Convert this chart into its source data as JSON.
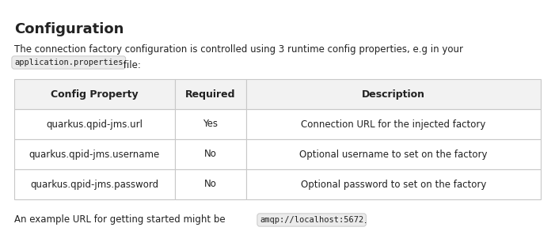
{
  "title": "Configuration",
  "intro_line1": "The connection factory configuration is controlled using 3 runtime config properties, e.g in your",
  "inline_code_1": "application.properties",
  "intro_line2_suffix": " file:",
  "footer_text": "An example URL for getting started might be",
  "footer_code": "amqp://localhost:5672",
  "footer_text_end": " .",
  "table_headers": [
    "Config Property",
    "Required",
    "Description"
  ],
  "table_rows": [
    [
      "quarkus.qpid-jms.url",
      "Yes",
      "Connection URL for the injected factory"
    ],
    [
      "quarkus.qpid-jms.username",
      "No",
      "Optional username to set on the factory"
    ],
    [
      "quarkus.qpid-jms.password",
      "No",
      "Optional password to set on the factory"
    ]
  ],
  "bg_color": "#ffffff",
  "header_bg": "#f2f2f2",
  "row_bg": "#ffffff",
  "border_color": "#c8c8c8",
  "text_color": "#222222",
  "code_bg": "#ebebeb",
  "code_border": "#c8c8c8",
  "title_fontsize": 13,
  "body_fontsize": 8.5,
  "header_fontsize": 9,
  "code_fontsize": 7.5,
  "fig_width": 7.01,
  "fig_height": 3.16,
  "dpi": 100
}
